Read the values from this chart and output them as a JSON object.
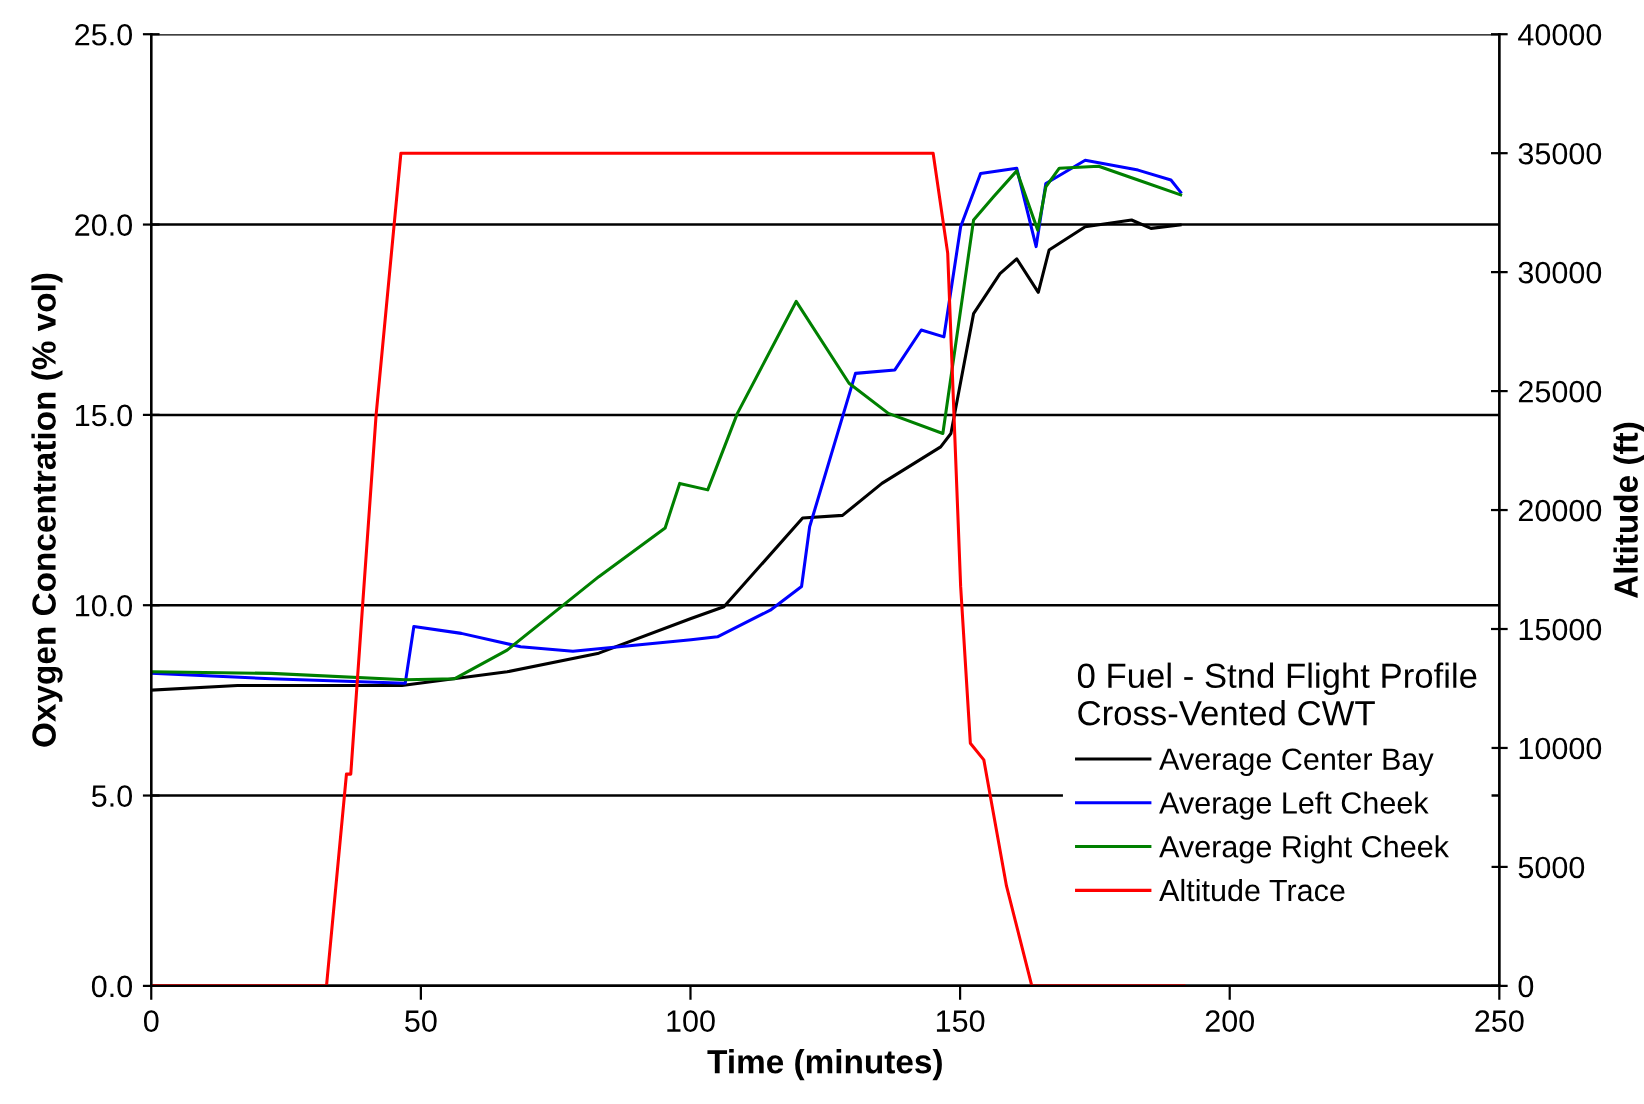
{
  "chart_data": {
    "type": "line",
    "xlabel": "Time (minutes)",
    "ylabel": "Oxygen Concentration (% vol)",
    "y2label": "Altitude (ft)",
    "legend_title": "0 Fuel - Stnd Flight Profile\nCross-Vented CWT",
    "legend": "bottom right",
    "grid": "y",
    "marker": "none",
    "line_style": "solid",
    "xlim": [
      0,
      250
    ],
    "xticks": [
      0,
      50,
      100,
      150,
      200,
      250
    ],
    "ylim": [
      0,
      25
    ],
    "yticks": [
      {
        "value": 0,
        "label": "0.0"
      },
      {
        "value": 5,
        "label": "5.0"
      },
      {
        "value": 10,
        "label": "10.0"
      },
      {
        "value": 15,
        "label": "15.0"
      },
      {
        "value": 20,
        "label": "20.0"
      },
      {
        "value": 25,
        "label": "25.0"
      }
    ],
    "y2lim": [
      0,
      40000
    ],
    "y2ticks": [
      0,
      5000,
      10000,
      15000,
      20000,
      25000,
      30000,
      35000,
      40000
    ],
    "series": [
      {
        "name": "Average Center Bay",
        "color": "#000000",
        "x": [
          0.2,
          16,
          46.5,
          66,
          83,
          100.1,
          106.2,
          120.8,
          128.2,
          135.5,
          146.4,
          148.3,
          152.5,
          157.4,
          160.5,
          164.5,
          166.5,
          173.2,
          181.8,
          185.4,
          190.8
        ],
        "values": [
          7.77,
          7.89,
          7.89,
          8.25,
          8.74,
          9.65,
          9.96,
          12.29,
          12.36,
          13.2,
          14.16,
          14.51,
          17.66,
          18.71,
          19.1,
          18.22,
          19.33,
          19.94,
          20.12,
          19.9,
          19.99
        ]
      },
      {
        "name": "Average Left Cheek",
        "color": "#0000ff",
        "x": [
          0.2,
          22.2,
          47.1,
          48.7,
          57.5,
          68.5,
          78.2,
          100.1,
          105,
          114.8,
          120.6,
          122.1,
          130.6,
          137.9,
          142.8,
          147,
          150.1,
          153.8,
          160.5,
          164.1,
          165.9,
          173.2,
          183,
          189.1,
          190.9
        ],
        "values": [
          8.21,
          8.07,
          7.95,
          9.44,
          9.26,
          8.91,
          8.79,
          9.09,
          9.17,
          9.87,
          10.49,
          12.06,
          16.09,
          16.18,
          17.23,
          17.05,
          19.94,
          21.34,
          21.48,
          19.42,
          21.08,
          21.69,
          21.43,
          21.17,
          20.85
        ]
      },
      {
        "name": "Average Right Cheek",
        "color": "#008000",
        "x": [
          0.2,
          22.2,
          47.1,
          56.3,
          66,
          83,
          95.3,
          98,
          103.2,
          108.7,
          119.6,
          129.4,
          136.7,
          146.8,
          152.5,
          156.2,
          160.5,
          164.4,
          165.9,
          168.4,
          175.7,
          183,
          190.9
        ],
        "values": [
          8.25,
          8.21,
          8.04,
          8.07,
          8.82,
          10.75,
          12.03,
          13.2,
          13.03,
          15.04,
          17.98,
          15.83,
          15.04,
          14.51,
          20.12,
          20.73,
          21.41,
          19.85,
          20.99,
          21.48,
          21.53,
          21.17,
          20.78
        ]
      },
      {
        "name": "Altitude Trace",
        "color": "#ff0000",
        "axis": "y2",
        "x": [
          0,
          32.5,
          36.2,
          37,
          39.2,
          41.7,
          46.3,
          145,
          147.7,
          150.1,
          151.9,
          154.4,
          158.6,
          163.3,
          191.5
        ],
        "values": [
          0,
          0,
          8900,
          8900,
          16000,
          24000,
          35000,
          35000,
          30800,
          16800,
          10200,
          9500,
          4200,
          0,
          0
        ]
      }
    ]
  }
}
